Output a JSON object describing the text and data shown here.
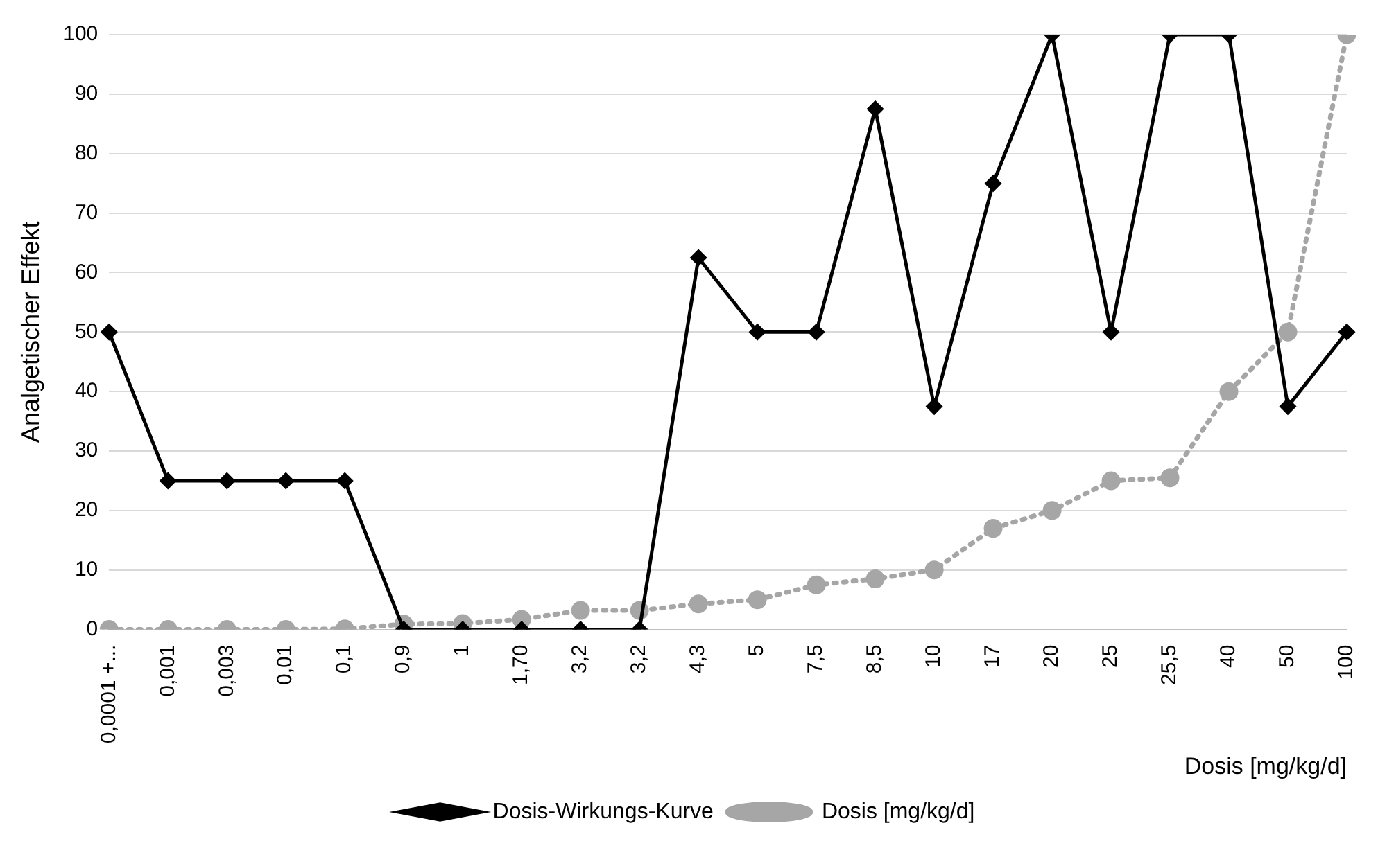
{
  "chart_data": {
    "type": "line",
    "xlabel": "Dosis [mg/kg/d]",
    "ylabel": "Analgetischer Effekt",
    "categories": [
      "0,0001 +...",
      "0,001",
      "0,003",
      "0,01",
      "0,1",
      "0,9",
      "1",
      "1,70",
      "3,2",
      "3,2",
      "4,3",
      "5",
      "7,5",
      "8,5",
      "10",
      "17",
      "20",
      "25",
      "25,5",
      "40",
      "50",
      "100"
    ],
    "series": [
      {
        "name": "Dosis-Wirkungs-Kurve",
        "color": "#000000",
        "marker": "diamond",
        "line_style": "solid",
        "values": [
          50,
          25,
          25,
          25,
          25,
          0,
          0,
          0,
          0,
          0,
          62.5,
          50,
          50,
          87.5,
          37.5,
          75,
          100,
          50,
          100,
          100,
          37.5,
          50
        ]
      },
      {
        "name": "Dosis [mg/kg/d]",
        "color": "#a6a6a6",
        "marker": "circle",
        "line_style": "dotted",
        "values": [
          0,
          0,
          0,
          0,
          0.1,
          0.9,
          1,
          1.7,
          3.2,
          3.2,
          4.3,
          5,
          7.5,
          8.5,
          10,
          17,
          20,
          25,
          25.5,
          40,
          50,
          100
        ]
      }
    ],
    "ylim": [
      0,
      100
    ],
    "yticks": [
      0,
      10,
      20,
      30,
      40,
      50,
      60,
      70,
      80,
      90,
      100
    ],
    "grid": "y",
    "legend": "bottom"
  }
}
